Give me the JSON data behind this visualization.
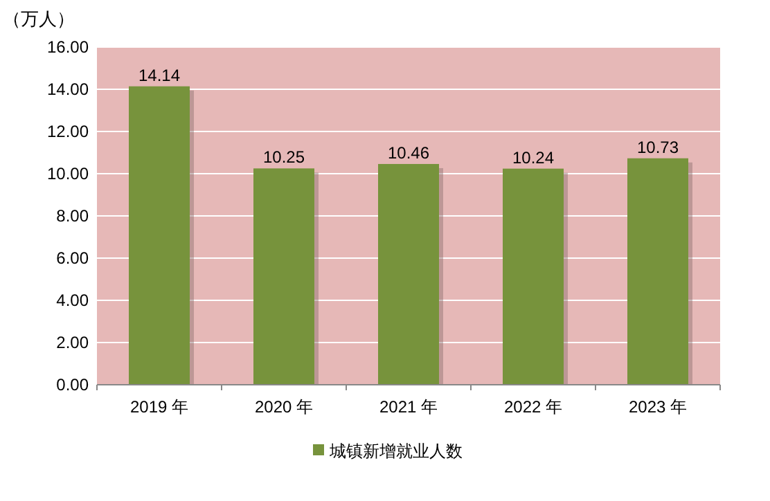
{
  "chart_data": {
    "type": "bar",
    "ylabel": "（万人）",
    "categories": [
      "2019 年",
      "2020 年",
      "2021 年",
      "2022 年",
      "2023 年"
    ],
    "series": [
      {
        "name": "城镇新增就业人数",
        "color": "#77933c",
        "values": [
          14.14,
          10.25,
          10.46,
          10.24,
          10.73
        ]
      }
    ],
    "ylim": [
      0,
      16
    ],
    "yticks": [
      {
        "value": 0,
        "label": "0.00"
      },
      {
        "value": 2,
        "label": "2.00"
      },
      {
        "value": 4,
        "label": "4.00"
      },
      {
        "value": 6,
        "label": "6.00"
      },
      {
        "value": 8,
        "label": "8.00"
      },
      {
        "value": 10,
        "label": "10.00"
      },
      {
        "value": 12,
        "label": "12.00"
      },
      {
        "value": 14,
        "label": "14.00"
      },
      {
        "value": 16,
        "label": "16.00"
      }
    ],
    "grid": "y",
    "legend": "bottom",
    "data_labels": true
  }
}
